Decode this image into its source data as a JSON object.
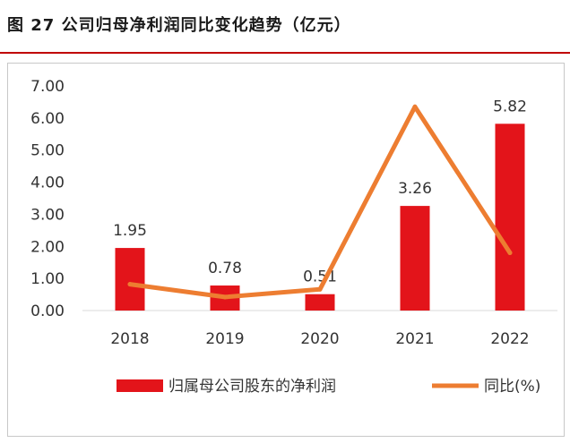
{
  "figure": {
    "title": "图 27 公司归母净利润同比变化趋势（亿元）"
  },
  "colors": {
    "bar": "#e3141a",
    "line": "#ed7d31",
    "title_rule": "#c00000"
  },
  "chart_data": {
    "type": "bar",
    "categories": [
      "2018",
      "2019",
      "2020",
      "2021",
      "2022"
    ],
    "series": [
      {
        "name": "归属母公司股东的净利润",
        "type": "bar",
        "values": [
          1.95,
          0.78,
          0.51,
          3.26,
          5.82
        ],
        "labels": [
          "1.95",
          "0.78",
          "0.51",
          "3.26",
          "5.82"
        ]
      },
      {
        "name": "同比(%)",
        "type": "line",
        "values": [
          0.82,
          0.42,
          0.66,
          6.35,
          1.8
        ]
      }
    ],
    "yticks": [
      "0.00",
      "1.00",
      "2.00",
      "3.00",
      "4.00",
      "5.00",
      "6.00",
      "7.00"
    ],
    "ylim": [
      0,
      7
    ],
    "grid": false,
    "legend_position": "bottom"
  }
}
